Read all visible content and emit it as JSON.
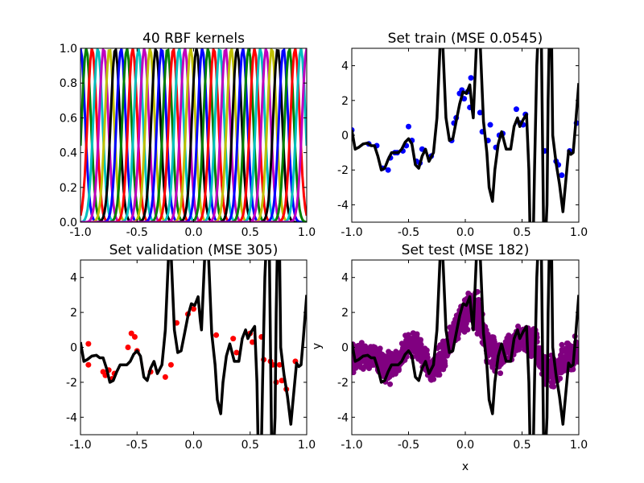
{
  "chart_data": [
    {
      "id": "kernels",
      "type": "line",
      "title": "40 RBF kernels",
      "xlim": [
        -1.0,
        1.0
      ],
      "ylim": [
        0.0,
        1.0
      ],
      "xticks": [
        "-1.0",
        "-0.5",
        "0.0",
        "0.5",
        "1.0"
      ],
      "yticks": [
        "0.0",
        "0.2",
        "0.4",
        "0.6",
        "0.8",
        "1.0"
      ],
      "kernel_count": 40,
      "kernel_centers_range": [
        -1.0,
        1.0
      ],
      "kernel_width": 0.04,
      "colors": [
        "#0000ff",
        "#008000",
        "#ff0000",
        "#00bfbf",
        "#bf00bf",
        "#bfbf00",
        "#000000"
      ]
    },
    {
      "id": "train",
      "type": "scatter",
      "title": "Set train (MSE 0.0545)",
      "xlim": [
        -1.0,
        1.0
      ],
      "ylim": [
        -5,
        5
      ],
      "xticks": [
        "-1.0",
        "-0.5",
        "0.0",
        "0.5",
        "1.0"
      ],
      "yticks": [
        "-4",
        "-2",
        "0",
        "2",
        "4"
      ],
      "point_color": "#0000ff",
      "points": [
        [
          -1.0,
          0.3
        ],
        [
          -0.85,
          -0.5
        ],
        [
          -0.78,
          -0.6
        ],
        [
          -0.73,
          -1.9
        ],
        [
          -0.68,
          -2.0
        ],
        [
          -0.66,
          -1.3
        ],
        [
          -0.62,
          -1.0
        ],
        [
          -0.6,
          -1.0
        ],
        [
          -0.55,
          -0.9
        ],
        [
          -0.52,
          -0.6
        ],
        [
          -0.5,
          0.5
        ],
        [
          -0.47,
          -0.3
        ],
        [
          -0.43,
          -1.5
        ],
        [
          -0.4,
          -1.6
        ],
        [
          -0.38,
          -0.8
        ],
        [
          -0.3,
          -1.2
        ],
        [
          -0.12,
          -0.3
        ],
        [
          -0.1,
          0.7
        ],
        [
          -0.08,
          1.0
        ],
        [
          -0.05,
          2.4
        ],
        [
          -0.03,
          2.6
        ],
        [
          -0.01,
          2.1
        ],
        [
          0.02,
          2.5
        ],
        [
          0.05,
          3.3
        ],
        [
          0.04,
          1.6
        ],
        [
          0.13,
          1.3
        ],
        [
          0.15,
          0.2
        ],
        [
          0.2,
          -0.3
        ],
        [
          0.22,
          0.6
        ],
        [
          0.27,
          -0.7
        ],
        [
          0.3,
          0.0
        ],
        [
          0.33,
          0.1
        ],
        [
          0.45,
          1.5
        ],
        [
          0.48,
          0.7
        ],
        [
          0.51,
          0.6
        ],
        [
          0.53,
          1.2
        ],
        [
          0.7,
          -0.9
        ],
        [
          0.8,
          -1.5
        ],
        [
          0.82,
          -1.7
        ],
        [
          0.85,
          -2.3
        ],
        [
          0.92,
          -0.9
        ],
        [
          0.98,
          0.7
        ]
      ],
      "fit_color": "#000000",
      "fit": [
        [
          -1.0,
          0.3
        ],
        [
          -0.97,
          -0.8
        ],
        [
          -0.94,
          -0.7
        ],
        [
          -0.9,
          -0.5
        ],
        [
          -0.86,
          -0.45
        ],
        [
          -0.83,
          -0.6
        ],
        [
          -0.8,
          -0.6
        ],
        [
          -0.77,
          -1.2
        ],
        [
          -0.74,
          -2.0
        ],
        [
          -0.71,
          -1.9
        ],
        [
          -0.68,
          -1.4
        ],
        [
          -0.65,
          -1.0
        ],
        [
          -0.62,
          -1.0
        ],
        [
          -0.59,
          -1.0
        ],
        [
          -0.56,
          -0.8
        ],
        [
          -0.53,
          -0.4
        ],
        [
          -0.5,
          -0.2
        ],
        [
          -0.47,
          -0.5
        ],
        [
          -0.44,
          -1.7
        ],
        [
          -0.41,
          -1.9
        ],
        [
          -0.38,
          -1.2
        ],
        [
          -0.35,
          -0.8
        ],
        [
          -0.32,
          -1.5
        ],
        [
          -0.28,
          -1.0
        ],
        [
          -0.25,
          1.0
        ],
        [
          -0.22,
          5.5
        ],
        [
          -0.2,
          5.5
        ],
        [
          -0.17,
          1.0
        ],
        [
          -0.14,
          -0.3
        ],
        [
          -0.11,
          -0.2
        ],
        [
          -0.08,
          0.8
        ],
        [
          -0.05,
          1.8
        ],
        [
          -0.02,
          2.5
        ],
        [
          0.01,
          2.4
        ],
        [
          0.04,
          2.9
        ],
        [
          0.06,
          1.5
        ],
        [
          0.07,
          1.0
        ],
        [
          0.1,
          5.5
        ],
        [
          0.13,
          5.5
        ],
        [
          0.16,
          0.8
        ],
        [
          0.19,
          -1.0
        ],
        [
          0.21,
          -3.0
        ],
        [
          0.24,
          -3.8
        ],
        [
          0.26,
          -2.0
        ],
        [
          0.29,
          -0.5
        ],
        [
          0.32,
          0.2
        ],
        [
          0.36,
          -0.8
        ],
        [
          0.4,
          -0.8
        ],
        [
          0.43,
          0.5
        ],
        [
          0.46,
          1.0
        ],
        [
          0.48,
          0.5
        ],
        [
          0.51,
          0.9
        ],
        [
          0.54,
          1.2
        ],
        [
          0.56,
          -2.0
        ],
        [
          0.57,
          -5.5
        ],
        [
          0.6,
          -5.5
        ],
        [
          0.61,
          -2.0
        ],
        [
          0.63,
          4.0
        ],
        [
          0.64,
          5.5
        ],
        [
          0.67,
          5.5
        ],
        [
          0.68,
          0.0
        ],
        [
          0.69,
          -5.5
        ],
        [
          0.71,
          -5.5
        ],
        [
          0.72,
          -4.0
        ],
        [
          0.73,
          2.0
        ],
        [
          0.74,
          5.5
        ],
        [
          0.76,
          5.5
        ],
        [
          0.77,
          0.0
        ],
        [
          0.8,
          -1.6
        ],
        [
          0.83,
          -2.8
        ],
        [
          0.86,
          -4.4
        ],
        [
          0.88,
          -3.0
        ],
        [
          0.91,
          -0.9
        ],
        [
          0.93,
          -1.1
        ],
        [
          0.95,
          -1.0
        ],
        [
          0.97,
          0.5
        ],
        [
          1.0,
          3.0
        ]
      ]
    },
    {
      "id": "validation",
      "type": "scatter",
      "title": "Set validation (MSE 305)",
      "xlim": [
        -1.0,
        1.0
      ],
      "ylim": [
        -5,
        5
      ],
      "xticks": [
        "-1.0",
        "-0.5",
        "0.0",
        "0.5",
        "1.0"
      ],
      "yticks": [
        "-4",
        "-2",
        "0",
        "2",
        "4"
      ],
      "point_color": "#ff0000",
      "points": [
        [
          -0.93,
          0.2
        ],
        [
          -0.93,
          -1.0
        ],
        [
          -0.8,
          -1.4
        ],
        [
          -0.78,
          -1.6
        ],
        [
          -0.75,
          -1.3
        ],
        [
          -0.72,
          -1.8
        ],
        [
          -0.7,
          -1.5
        ],
        [
          -0.58,
          0.0
        ],
        [
          -0.55,
          0.8
        ],
        [
          -0.52,
          0.6
        ],
        [
          -0.5,
          -0.2
        ],
        [
          -0.38,
          -1.4
        ],
        [
          -0.25,
          -1.7
        ],
        [
          -0.2,
          -1.0
        ],
        [
          -0.15,
          1.4
        ],
        [
          -0.05,
          1.9
        ],
        [
          0.0,
          2.2
        ],
        [
          0.2,
          0.7
        ],
        [
          0.35,
          0.5
        ],
        [
          0.38,
          -0.3
        ],
        [
          0.5,
          0.8
        ],
        [
          0.52,
          0.3
        ],
        [
          0.6,
          0.6
        ],
        [
          0.62,
          -0.7
        ],
        [
          0.68,
          -0.8
        ],
        [
          0.7,
          -1.0
        ],
        [
          0.73,
          -2.0
        ],
        [
          0.76,
          -1.0
        ],
        [
          0.78,
          -1.9
        ],
        [
          0.82,
          -2.4
        ],
        [
          0.9,
          -0.8
        ]
      ]
    },
    {
      "id": "test",
      "type": "scatter",
      "title": "Set test (MSE 182)",
      "xlim": [
        -1.0,
        1.0
      ],
      "ylim": [
        -5,
        5
      ],
      "xticks": [
        "-1.0",
        "-0.5",
        "0.0",
        "0.5",
        "1.0"
      ],
      "yticks": [
        "-4",
        "-2",
        "0",
        "2",
        "4"
      ],
      "xlabel": "x",
      "ylabel": "y",
      "point_color": "#800080",
      "band": [
        [
          -1.0,
          0.9,
          -1.7
        ],
        [
          -0.9,
          0.3,
          -1.4
        ],
        [
          -0.8,
          0.4,
          -1.4
        ],
        [
          -0.7,
          0.0,
          -2.4
        ],
        [
          -0.6,
          0.0,
          -1.9
        ],
        [
          -0.5,
          1.1,
          -0.6
        ],
        [
          -0.4,
          1.0,
          -0.9
        ],
        [
          -0.3,
          -0.3,
          -2.5
        ],
        [
          -0.2,
          0.7,
          -1.6
        ],
        [
          -0.1,
          2.0,
          -0.5
        ],
        [
          0.0,
          3.3,
          0.6
        ],
        [
          0.1,
          3.7,
          0.7
        ],
        [
          0.2,
          1.3,
          -1.3
        ],
        [
          0.3,
          0.7,
          -1.7
        ],
        [
          0.4,
          1.1,
          -1.1
        ],
        [
          0.5,
          1.7,
          -0.5
        ],
        [
          0.6,
          1.6,
          -0.8
        ],
        [
          0.7,
          -0.1,
          -2.6
        ],
        [
          0.8,
          0.0,
          -2.6
        ],
        [
          0.9,
          0.7,
          -1.6
        ],
        [
          1.0,
          0.8,
          -1.4
        ]
      ]
    }
  ]
}
